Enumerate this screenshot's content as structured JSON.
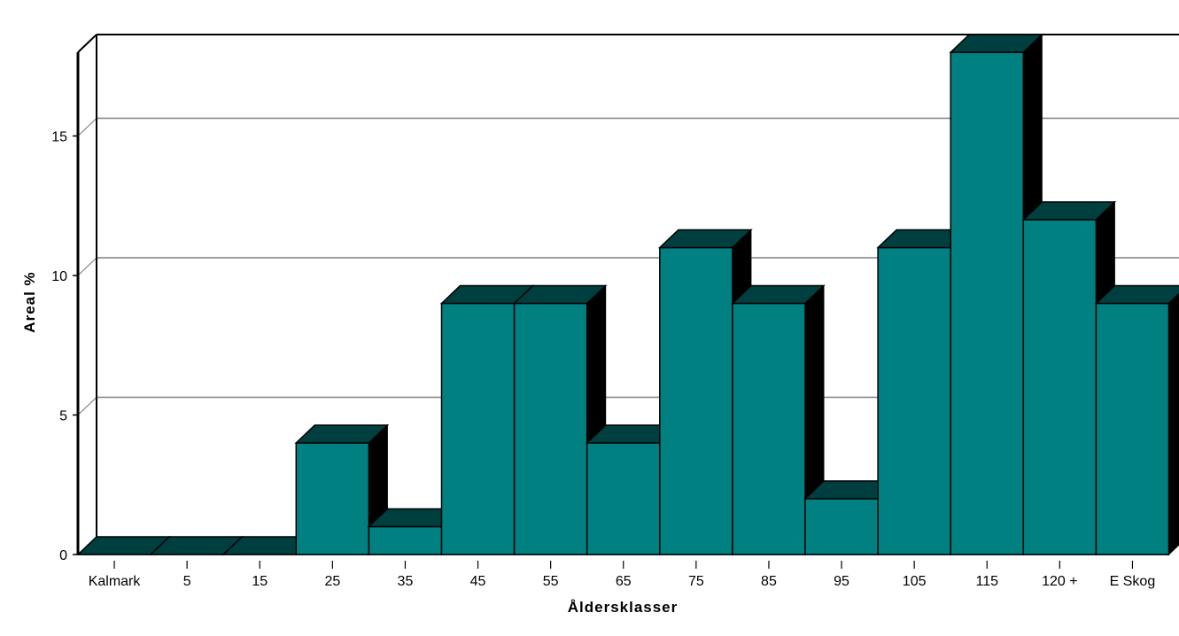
{
  "chart_data": {
    "type": "bar",
    "title": "",
    "xlabel": "Åldersklasser",
    "ylabel": "Areal %",
    "categories": [
      "Kalmark",
      "5",
      "15",
      "25",
      "35",
      "45",
      "55",
      "65",
      "75",
      "85",
      "95",
      "105",
      "115",
      "120 +",
      "E Skog"
    ],
    "values": [
      0,
      0,
      0,
      4,
      1,
      9,
      9,
      4,
      11,
      9,
      2,
      11,
      18,
      12,
      9
    ],
    "yticks": [
      0,
      5,
      10,
      15
    ],
    "ylim": [
      0,
      18
    ],
    "grid": true,
    "style": "3d",
    "colors": {
      "bar_front": "#008080",
      "bar_top": "#003F3F",
      "bar_side": "#000000",
      "gridline": "#808080"
    }
  }
}
